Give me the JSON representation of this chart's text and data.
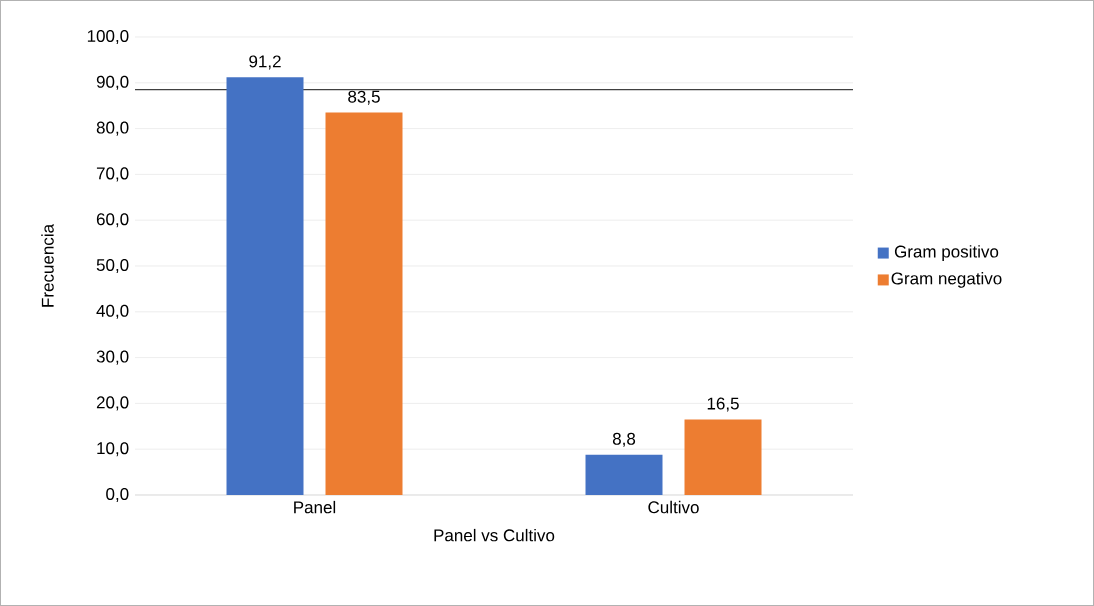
{
  "chart_data": {
    "type": "bar",
    "xlabel": "Panel vs Cultivo",
    "ylabel": "Frecuencia",
    "categories": [
      "Panel",
      "Cultivo"
    ],
    "series": [
      {
        "name": "Gram positivo",
        "color": "#4472c4",
        "values": [
          91.2,
          8.8
        ],
        "value_labels": [
          "91,2",
          "8,8"
        ]
      },
      {
        "name": "Gram negativo",
        "color": "#ed7d31",
        "values": [
          83.5,
          16.5
        ],
        "value_labels": [
          "83,5",
          "16,5"
        ]
      }
    ],
    "ylim": [
      0,
      100
    ],
    "yticks": [
      {
        "value": 0,
        "label": "0,0"
      },
      {
        "value": 10,
        "label": "10,0"
      },
      {
        "value": 20,
        "label": "20,0"
      },
      {
        "value": 30,
        "label": "30,0"
      },
      {
        "value": 40,
        "label": "40,0"
      },
      {
        "value": 50,
        "label": "50,0"
      },
      {
        "value": 60,
        "label": "60,0"
      },
      {
        "value": 70,
        "label": "70,0"
      },
      {
        "value": 80,
        "label": "80,0"
      },
      {
        "value": 90,
        "label": "90,0"
      },
      {
        "value": 100,
        "label": "100,0"
      }
    ],
    "ref_lines": [
      {
        "axis": "y",
        "value": 88.5,
        "color": "#404040"
      }
    ],
    "grid": "y",
    "legend": "right"
  }
}
